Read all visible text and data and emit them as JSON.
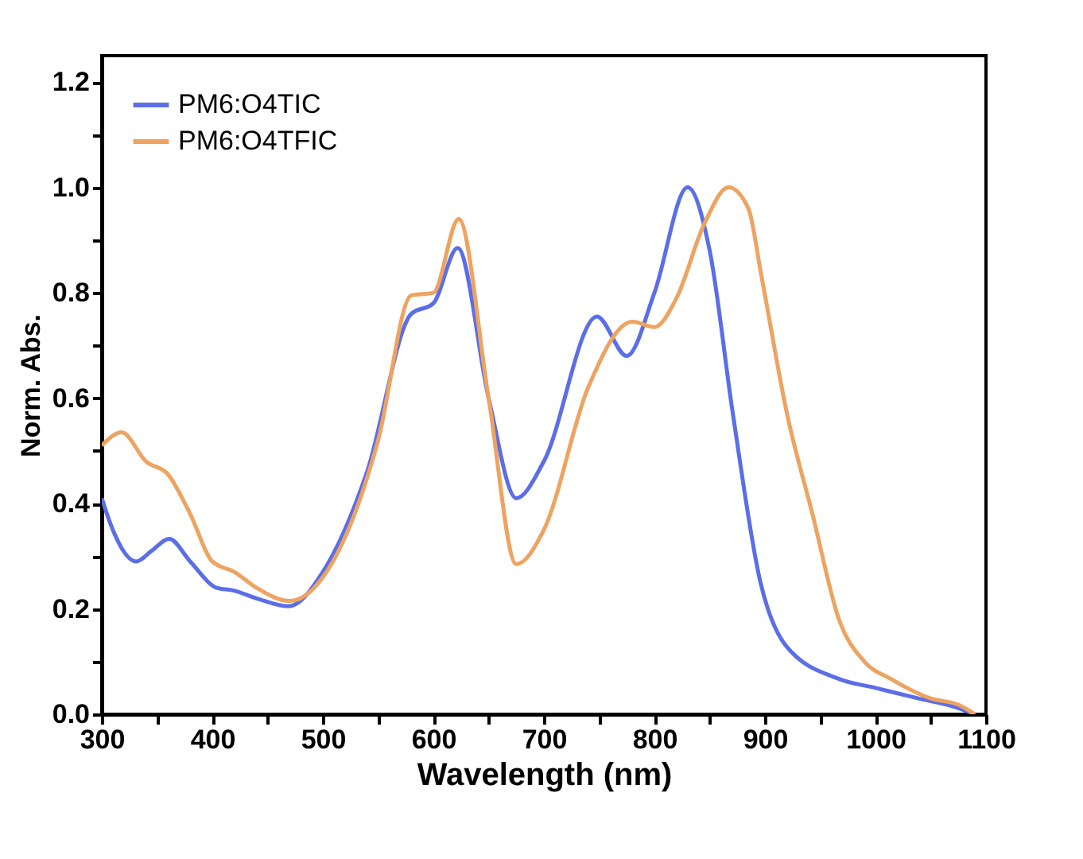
{
  "chart_data": {
    "type": "line",
    "xlabel": "Wavelength (nm)",
    "ylabel": "Norm. Abs.",
    "xlim": [
      300,
      1100
    ],
    "ylim": [
      0,
      1.25
    ],
    "xticks": [
      300,
      {
        "value": 350,
        "label": null
      },
      400,
      {
        "value": 450,
        "label": null
      },
      500,
      {
        "value": 550,
        "label": null
      },
      600,
      {
        "value": 650,
        "label": null
      },
      700,
      {
        "value": 750,
        "label": null
      },
      800,
      {
        "value": 850,
        "label": null
      },
      900,
      {
        "value": 950,
        "label": null
      },
      1000,
      {
        "value": 1050,
        "label": null
      },
      1100
    ],
    "yticks": [
      {
        "value": 0,
        "label": "0.0"
      },
      {
        "value": 0.1,
        "label": null
      },
      0.2,
      {
        "value": 0.3,
        "label": null
      },
      0.4,
      {
        "value": 0.5,
        "label": null
      },
      0.6,
      {
        "value": 0.7,
        "label": null
      },
      0.8,
      {
        "value": 0.9,
        "label": null
      },
      {
        "value": 1,
        "label": "1.0"
      },
      {
        "value": 1.1,
        "label": null
      },
      1.2
    ],
    "legend": "top left",
    "grid": false,
    "line_style": "solid",
    "marker": "none",
    "series": [
      {
        "name": "PM6:O4TIC",
        "color": "#5b6ee8",
        "x": [
          300,
          310,
          331,
          345,
          361,
          380,
          404,
          419,
          440,
          469,
          500,
          540,
          580,
          600,
          622,
          650,
          675,
          700,
          748,
          775,
          800,
          830,
          850,
          871,
          896,
          919,
          967,
          1000,
          1039,
          1070,
          1090
        ],
        "values": [
          0.41,
          0.35,
          0.29,
          0.31,
          0.333,
          0.29,
          0.24,
          0.235,
          0.22,
          0.205,
          0.27,
          0.46,
          0.76,
          0.78,
          0.885,
          0.6,
          0.41,
          0.48,
          0.755,
          0.68,
          0.8,
          1.0,
          0.88,
          0.57,
          0.25,
          0.13,
          0.067,
          0.05,
          0.03,
          0.015,
          0
        ]
      },
      {
        "name": "PM6:O4TFIC",
        "color": "#eea361",
        "x": [
          300,
          318,
          340,
          360,
          380,
          400,
          420,
          440,
          470,
          500,
          550,
          580,
          600,
          623,
          650,
          675,
          700,
          740,
          780,
          800,
          820,
          845,
          867,
          885,
          897,
          920,
          943,
          967,
          990,
          1014,
          1050,
          1075,
          1090
        ],
        "values": [
          0.51,
          0.535,
          0.48,
          0.455,
          0.38,
          0.29,
          0.27,
          0.24,
          0.215,
          0.26,
          0.52,
          0.795,
          0.8,
          0.94,
          0.6,
          0.285,
          0.35,
          0.62,
          0.745,
          0.735,
          0.79,
          0.93,
          1.0,
          0.96,
          0.83,
          0.57,
          0.38,
          0.18,
          0.1,
          0.067,
          0.03,
          0.018,
          0
        ]
      }
    ]
  }
}
